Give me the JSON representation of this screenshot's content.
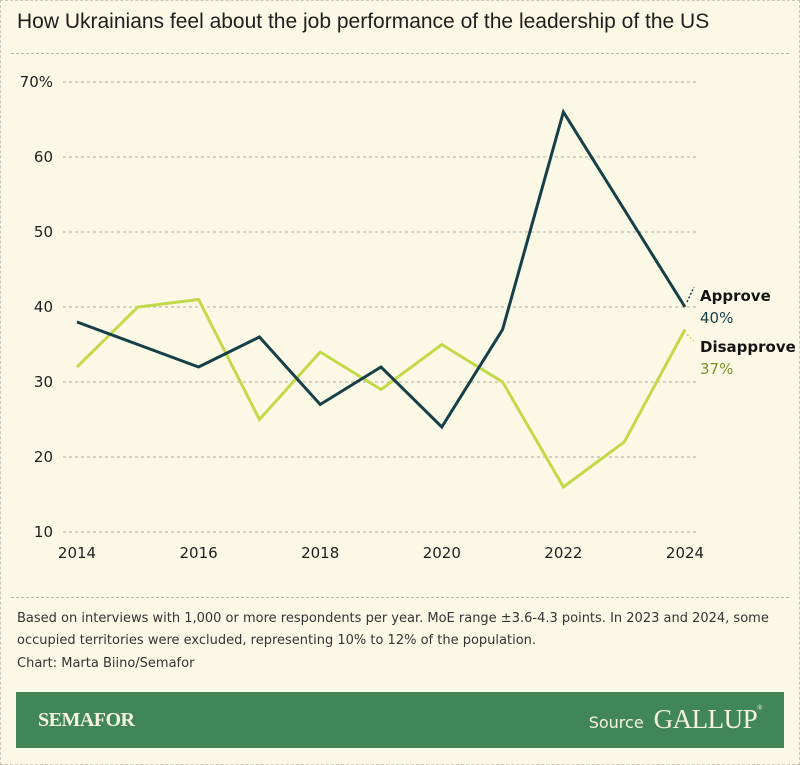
{
  "title": "How Ukrainians feel about the job performance of the leadership of the US",
  "chart_data": {
    "type": "line",
    "title": "How Ukrainians feel about the job performance of the leadership of the US",
    "xlabel": "",
    "ylabel": "",
    "x": [
      2014,
      2015,
      2016,
      2017,
      2018,
      2019,
      2020,
      2021,
      2022,
      2023,
      2024
    ],
    "x_ticks": [
      "2014",
      "2016",
      "2018",
      "2020",
      "2022",
      "2024"
    ],
    "y_ticks": [
      "70%",
      "60",
      "50",
      "40",
      "30",
      "20",
      "10"
    ],
    "ylim": [
      10,
      70
    ],
    "xlim": [
      2014,
      2024
    ],
    "grid": true,
    "legend_placement": "right-end-labels",
    "series": [
      {
        "name": "Approve",
        "end_label": "40%",
        "color": "#173f48",
        "values": [
          38,
          35,
          32,
          36,
          27,
          32,
          24,
          37,
          66,
          53,
          40
        ]
      },
      {
        "name": "Disapprove",
        "end_label": "37%",
        "color": "#c2d94a",
        "label_color": "#7a9128",
        "values": [
          32,
          40,
          41,
          25,
          34,
          29,
          35,
          30,
          16,
          22,
          37
        ]
      }
    ]
  },
  "notes": {
    "methodology": "Based on interviews with 1,000 or more respondents per year. MoE range ±3.6-4.3 points. In 2023 and 2024, some occupied territories were excluded, representing 10% to 12% of the population.",
    "credit": "Chart: Marta Biino/Semafor"
  },
  "footer": {
    "brand": "SEMAFOR",
    "source_label": "Source",
    "source_name": "GALLUP",
    "source_mark": "®",
    "background": "#418755"
  }
}
